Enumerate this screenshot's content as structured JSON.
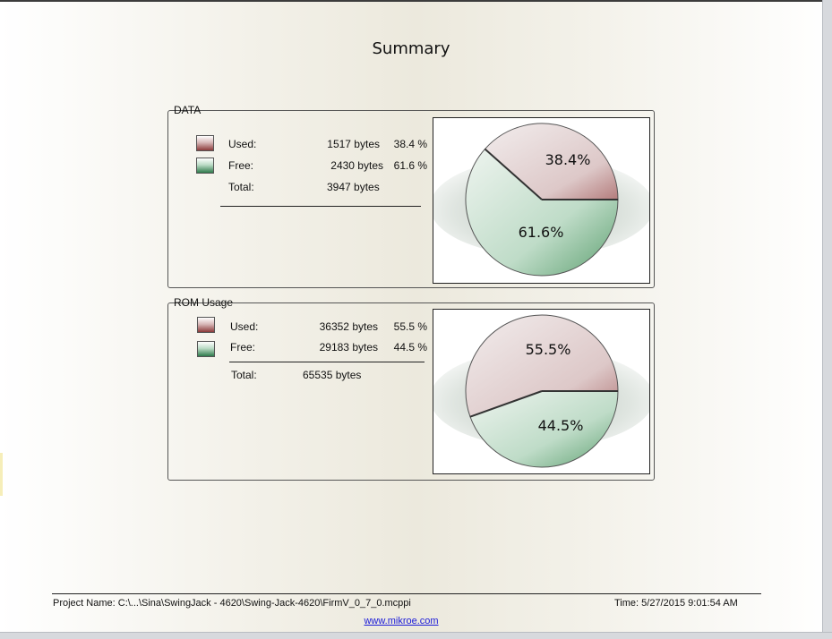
{
  "report": {
    "title": "Summary",
    "footer": {
      "project": "Project Name: C:\\...\\Sina\\SwingJack - 4620\\Swing-Jack-4620\\FirmV_0_7_0.mcppi",
      "time": "Time:  5/27/2015 9:01:54 AM",
      "link": "www.mikroe.com"
    }
  },
  "colors": {
    "used": "#c9a3a3",
    "free": "#8fc3a0",
    "used_dark": "#8c3a3a",
    "free_dark": "#2f7a4c"
  },
  "data_group": {
    "label": "DATA",
    "used_label": "Used:",
    "used_value": "1517 bytes",
    "used_pct": "38.4 %",
    "free_label": "Free:",
    "free_value": "2430 bytes",
    "free_pct": "61.6 %",
    "total_label": "Total:",
    "total_value": "3947 bytes"
  },
  "rom_group": {
    "label": "ROM Usage",
    "used_label": "Used:",
    "used_value": "36352 bytes",
    "used_pct": "55.5 %",
    "free_label": "Free:",
    "free_value": "29183 bytes",
    "free_pct": "44.5 %",
    "total_label": "Total:",
    "total_value": "65535 bytes"
  },
  "chart_data": [
    {
      "type": "pie",
      "title": "DATA",
      "categories": [
        "Used",
        "Free"
      ],
      "values": [
        1517,
        2430
      ],
      "labels": [
        "38.4%",
        "61.6%"
      ]
    },
    {
      "type": "pie",
      "title": "ROM Usage",
      "categories": [
        "Used",
        "Free"
      ],
      "values": [
        36352,
        29183
      ],
      "labels": [
        "55.5%",
        "44.5%"
      ]
    }
  ]
}
